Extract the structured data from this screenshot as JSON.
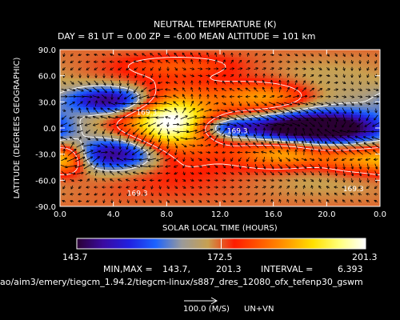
{
  "header": {
    "title": "NEUTRAL TEMPERATURE (K)",
    "subtitle": "DAY =   81   UT =   0.00   ZP =   -6.00   MEAN ALTITUDE = 101 km"
  },
  "colorbar": {
    "min_label": "143.7",
    "mid_label": "172.5",
    "max_label": "201.3",
    "colors": [
      "#2a0033",
      "#3a0aa0",
      "#2020e0",
      "#1c63ff",
      "#9a9a9a",
      "#c8a050",
      "#ff1c00",
      "#ff5a00",
      "#ff9a00",
      "#ffe000",
      "#ffff7a",
      "#ffffff"
    ]
  },
  "stats": {
    "minmax_label": "MIN,MAX =",
    "min_value": "143.7,",
    "max_value": "201.3",
    "interval_label": "INTERVAL =",
    "interval_value": "6.393"
  },
  "path_text": "ao/aim3/emery/tiegcm_1.94.2/tiegcm-linux/s887_dres_12080_ofx_tefenp30_gswm",
  "wind_legend": {
    "vector_label": "100.0 (M/S)",
    "component_label": "UN+VN"
  },
  "chart_data": {
    "type": "heatmap",
    "title": "NEUTRAL TEMPERATURE (K)",
    "xlabel": "SOLAR LOCAL TIME (HOURS)",
    "ylabel": "LATITUDE (DEGREES GEOGRAPHIC)",
    "xlim": [
      0,
      24
    ],
    "ylim": [
      -90,
      90
    ],
    "x_ticks": [
      "0.0",
      "4.0",
      "8.0",
      "12.0",
      "16.0",
      "20.0",
      "0.0"
    ],
    "x_tick_values": [
      0,
      4,
      8,
      12,
      16,
      20,
      24
    ],
    "y_ticks": [
      "90.0",
      "60.0",
      "30.0",
      "0.0",
      "-30.0",
      "-60.0",
      "-90.0"
    ],
    "y_tick_values": [
      90,
      60,
      30,
      0,
      -30,
      -60,
      -90
    ],
    "zlim": [
      143.7,
      201.3
    ],
    "background_value": 172,
    "features": [
      {
        "kind": "min",
        "lt": 3.8,
        "lat": 32,
        "slt": 2.2,
        "slat": 11,
        "depth": 27
      },
      {
        "kind": "min",
        "lt": 4.2,
        "lat": -30,
        "slt": 2.2,
        "slat": 13,
        "depth": 27
      },
      {
        "kind": "min",
        "lt": 12.5,
        "lat": 0,
        "slt": 1.5,
        "slat": 8,
        "depth": 16
      },
      {
        "kind": "min",
        "lt": 16.5,
        "lat": 0,
        "slt": 2.4,
        "slat": 10,
        "depth": 18
      },
      {
        "kind": "min",
        "lt": 20.5,
        "lat": 0,
        "slt": 2.8,
        "slat": 13,
        "depth": 28
      },
      {
        "kind": "max",
        "lt": 8.3,
        "lat": 8,
        "slt": 2.0,
        "slat": 20,
        "depth": 25
      },
      {
        "kind": "max",
        "lt": 15.5,
        "lat": 35,
        "slt": 2.5,
        "slat": 12,
        "depth": 15
      },
      {
        "kind": "max",
        "lt": 17.0,
        "lat": -30,
        "slt": 2.5,
        "slat": 12,
        "depth": 18
      },
      {
        "kind": "max",
        "lt": 22.5,
        "lat": -35,
        "slt": 2.0,
        "slat": 12,
        "depth": 16
      },
      {
        "kind": "max",
        "lt": 0.6,
        "lat": -35,
        "slt": 1.0,
        "slat": 12,
        "depth": 12
      },
      {
        "kind": "max",
        "lt": 9.0,
        "lat": 72,
        "slt": 3.0,
        "slat": 8,
        "depth": 6
      }
    ],
    "contour_levels": [
      165,
      176
    ],
    "contour_labels": [
      {
        "text": "169.3",
        "lt": 6.5,
        "lat": 18
      },
      {
        "text": "169.3",
        "lt": 5.8,
        "lat": -75
      },
      {
        "text": "169.3",
        "lt": 22.0,
        "lat": -70
      },
      {
        "text": "169.3",
        "lt": 13.3,
        "lat": -3
      }
    ],
    "wind_reference": {
      "speed": 100.0,
      "units": "M/S"
    }
  }
}
